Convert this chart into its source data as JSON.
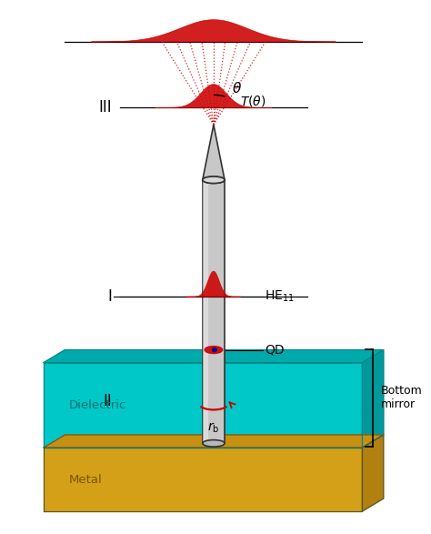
{
  "bg_color": "#ffffff",
  "dielectric_color": "#00c8c8",
  "metal_color": "#d4a017",
  "nanowire_color": "#c8c8c8",
  "nanowire_edge": "#333333",
  "red_color": "#cc0000",
  "blue_color": "#000099",
  "label_I": "I",
  "label_II": "II",
  "label_III": "III",
  "label_HE": "HE$_{11}$",
  "label_QD": "QD",
  "label_Ttheta": "$T(\\theta)$",
  "label_theta": "$\\theta$",
  "label_dielectric": "Dielectric",
  "label_metal": "Metal",
  "label_bottom_mirror": "Bottom\nmirror",
  "label_rb": "$r_{\\mathrm{b}}$"
}
